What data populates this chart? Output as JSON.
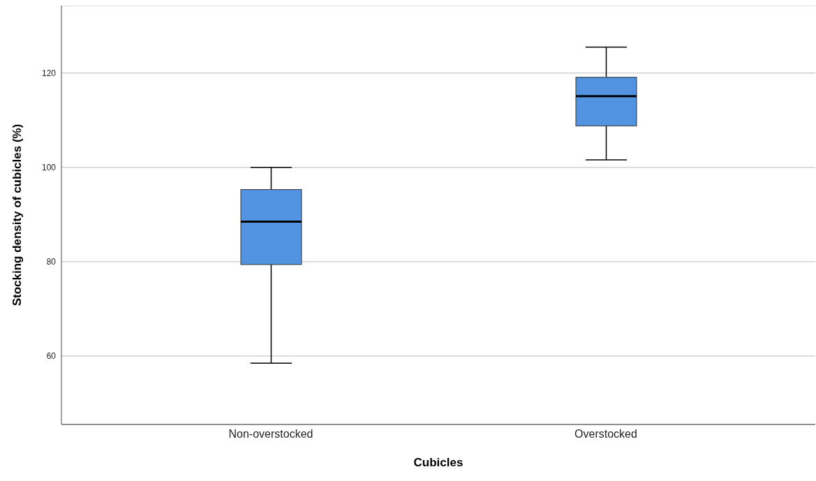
{
  "chart_data": {
    "type": "box",
    "xlabel": "Cubicles",
    "ylabel": "Stocking density of cubicles (%)",
    "categories": [
      "Non-overstocked",
      "Overstocked"
    ],
    "color": "#5294e2",
    "boxes": [
      {
        "low": 58.5,
        "q1": 79.4,
        "median": 88.5,
        "q3": 95.3,
        "high": 100
      },
      {
        "low": 101.6,
        "q1": 108.8,
        "median": 115.1,
        "q3": 119.1,
        "high": 125.5
      }
    ],
    "ylim": [
      45.5,
      134.3
    ],
    "yticks": [
      60,
      80,
      100,
      120
    ],
    "grid": "y",
    "legend": false
  }
}
